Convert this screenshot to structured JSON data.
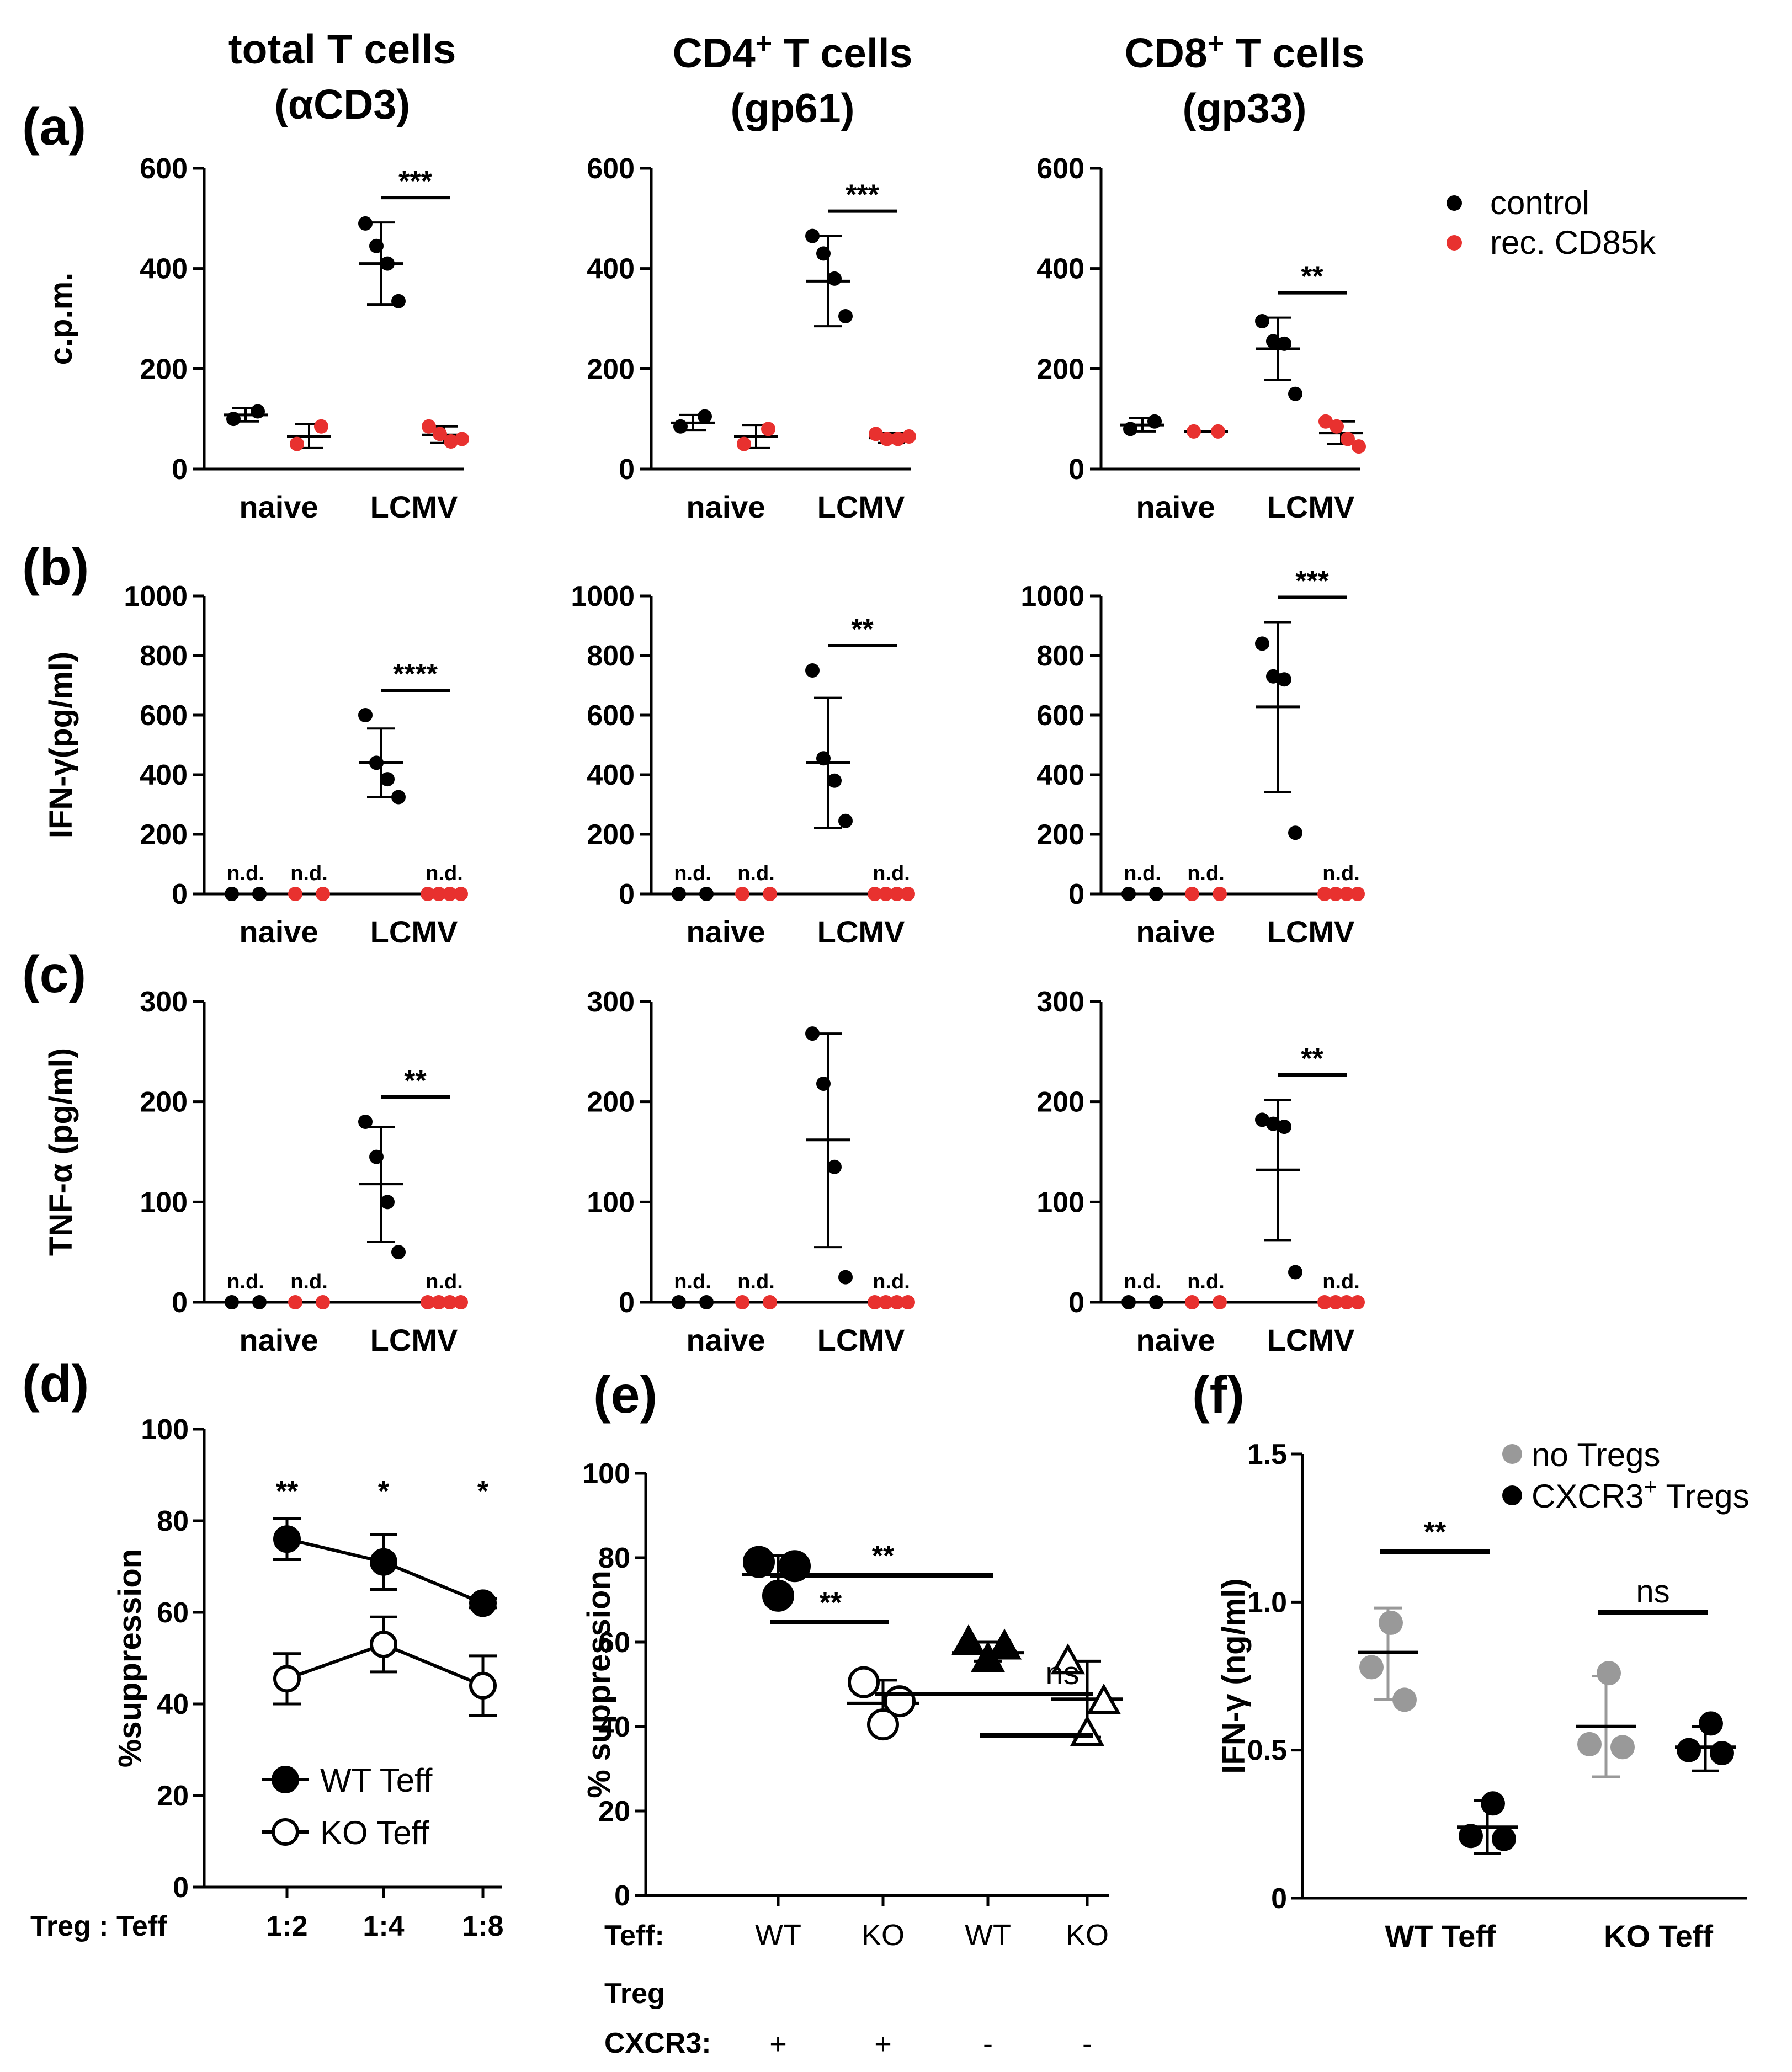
{
  "figure": {
    "colors": {
      "black": "#000000",
      "red": "#e8312f",
      "gray": "#999999"
    },
    "columns": [
      {
        "line1": "total T cells",
        "line2": "(αCD3)",
        "sup": ""
      },
      {
        "line1": "CD4",
        "sup": "+",
        "line1b": " T cells",
        "line2": "(gp61)"
      },
      {
        "line1": "CD8",
        "sup": "+",
        "line1b": " T cells",
        "line2": "(gp33)"
      }
    ],
    "row_labels": [
      "(a)",
      "(b)",
      "(c)"
    ],
    "legend_abc": [
      {
        "label": "control",
        "color": "#000000"
      },
      {
        "label": "rec. CD85k",
        "color": "#e8312f"
      }
    ]
  },
  "chart_data": [
    {
      "panel": "a",
      "col": 0,
      "type": "scatter",
      "ylabel": "c.p.m.",
      "ylim": [
        0,
        600
      ],
      "yticks": [
        0,
        200,
        400,
        600
      ],
      "categories": [
        "naive",
        "LCMV"
      ],
      "groups": [
        {
          "cat": 0,
          "side": "left",
          "color": "black",
          "points": [
            100,
            115
          ],
          "mean": 108,
          "err": [
            95,
            122
          ]
        },
        {
          "cat": 0,
          "side": "right",
          "color": "red",
          "points": [
            50,
            85
          ],
          "mean": 65,
          "err": [
            42,
            90
          ]
        },
        {
          "cat": 1,
          "side": "left",
          "color": "black",
          "points": [
            490,
            445,
            410,
            335
          ],
          "mean": 410,
          "err": [
            328,
            492
          ]
        },
        {
          "cat": 1,
          "side": "right",
          "color": "red",
          "points": [
            85,
            70,
            55,
            60
          ],
          "mean": 68,
          "err": [
            52,
            85
          ]
        }
      ],
      "nd": [],
      "sig": [
        {
          "cat": 1,
          "label": "***"
        }
      ]
    },
    {
      "panel": "a",
      "col": 1,
      "type": "scatter",
      "ylabel": "",
      "ylim": [
        0,
        600
      ],
      "yticks": [
        0,
        200,
        400,
        600
      ],
      "categories": [
        "naive",
        "LCMV"
      ],
      "groups": [
        {
          "cat": 0,
          "side": "left",
          "color": "black",
          "points": [
            85,
            105
          ],
          "mean": 92,
          "err": [
            78,
            108
          ]
        },
        {
          "cat": 0,
          "side": "right",
          "color": "red",
          "points": [
            50,
            80
          ],
          "mean": 65,
          "err": [
            42,
            88
          ]
        },
        {
          "cat": 1,
          "side": "left",
          "color": "black",
          "points": [
            465,
            430,
            380,
            305
          ],
          "mean": 375,
          "err": [
            285,
            465
          ]
        },
        {
          "cat": 1,
          "side": "right",
          "color": "red",
          "points": [
            70,
            60,
            60,
            65
          ],
          "mean": 62,
          "err": [
            52,
            72
          ]
        }
      ],
      "nd": [],
      "sig": [
        {
          "cat": 1,
          "label": "***"
        }
      ]
    },
    {
      "panel": "a",
      "col": 2,
      "type": "scatter",
      "ylabel": "",
      "ylim": [
        0,
        600
      ],
      "yticks": [
        0,
        200,
        400,
        600
      ],
      "categories": [
        "naive",
        "LCMV"
      ],
      "groups": [
        {
          "cat": 0,
          "side": "left",
          "color": "black",
          "points": [
            80,
            95
          ],
          "mean": 88,
          "err": [
            75,
            102
          ]
        },
        {
          "cat": 0,
          "side": "right",
          "color": "red",
          "points": [
            75,
            75
          ],
          "mean": 75,
          "err": [
            75,
            75
          ]
        },
        {
          "cat": 1,
          "side": "left",
          "color": "black",
          "points": [
            295,
            255,
            250,
            150
          ],
          "mean": 240,
          "err": [
            178,
            302
          ]
        },
        {
          "cat": 1,
          "side": "right",
          "color": "red",
          "points": [
            95,
            85,
            60,
            45
          ],
          "mean": 72,
          "err": [
            50,
            95
          ]
        }
      ],
      "nd": [],
      "sig": [
        {
          "cat": 1,
          "label": "**"
        }
      ]
    },
    {
      "panel": "b",
      "col": 0,
      "type": "scatter",
      "ylabel": "IFN-γ(pg/ml)",
      "ylim": [
        0,
        1000
      ],
      "yticks": [
        0,
        200,
        400,
        600,
        800,
        1000
      ],
      "categories": [
        "naive",
        "LCMV"
      ],
      "groups": [
        {
          "cat": 0,
          "side": "left",
          "color": "black",
          "points": [
            0,
            0
          ],
          "mean": null,
          "err": null
        },
        {
          "cat": 0,
          "side": "right",
          "color": "red",
          "points": [
            0,
            0
          ],
          "mean": null,
          "err": null
        },
        {
          "cat": 1,
          "side": "left",
          "color": "black",
          "points": [
            600,
            440,
            385,
            325
          ],
          "mean": 440,
          "err": [
            325,
            555
          ]
        },
        {
          "cat": 1,
          "side": "right",
          "color": "red",
          "points": [
            0,
            0,
            0,
            0
          ],
          "mean": null,
          "err": null
        }
      ],
      "nd": [
        {
          "cat": 0,
          "side": "left"
        },
        {
          "cat": 0,
          "side": "right"
        },
        {
          "cat": 1,
          "side": "right"
        }
      ],
      "nd_label": "n.d.",
      "sig": [
        {
          "cat": 1,
          "label": "****"
        }
      ]
    },
    {
      "panel": "b",
      "col": 1,
      "type": "scatter",
      "ylabel": "",
      "ylim": [
        0,
        1000
      ],
      "yticks": [
        0,
        200,
        400,
        600,
        800,
        1000
      ],
      "categories": [
        "naive",
        "LCMV"
      ],
      "groups": [
        {
          "cat": 0,
          "side": "left",
          "color": "black",
          "points": [
            0,
            0
          ],
          "mean": null,
          "err": null
        },
        {
          "cat": 0,
          "side": "right",
          "color": "red",
          "points": [
            0,
            0
          ],
          "mean": null,
          "err": null
        },
        {
          "cat": 1,
          "side": "left",
          "color": "black",
          "points": [
            750,
            455,
            380,
            245
          ],
          "mean": 440,
          "err": [
            222,
            658
          ]
        },
        {
          "cat": 1,
          "side": "right",
          "color": "red",
          "points": [
            0,
            0,
            0,
            0
          ],
          "mean": null,
          "err": null
        }
      ],
      "nd": [
        {
          "cat": 0,
          "side": "left"
        },
        {
          "cat": 0,
          "side": "right"
        },
        {
          "cat": 1,
          "side": "right"
        }
      ],
      "nd_label": "n.d.",
      "sig": [
        {
          "cat": 1,
          "label": "**"
        }
      ]
    },
    {
      "panel": "b",
      "col": 2,
      "type": "scatter",
      "ylabel": "",
      "ylim": [
        0,
        1000
      ],
      "yticks": [
        0,
        200,
        400,
        600,
        800,
        1000
      ],
      "categories": [
        "naive",
        "LCMV"
      ],
      "groups": [
        {
          "cat": 0,
          "side": "left",
          "color": "black",
          "points": [
            0,
            0
          ],
          "mean": null,
          "err": null
        },
        {
          "cat": 0,
          "side": "right",
          "color": "red",
          "points": [
            0,
            0
          ],
          "mean": null,
          "err": null
        },
        {
          "cat": 1,
          "side": "left",
          "color": "black",
          "points": [
            840,
            730,
            720,
            205
          ],
          "mean": 628,
          "err": [
            342,
            912
          ]
        },
        {
          "cat": 1,
          "side": "right",
          "color": "red",
          "points": [
            0,
            0,
            0,
            0
          ],
          "mean": null,
          "err": null
        }
      ],
      "nd": [
        {
          "cat": 0,
          "side": "left"
        },
        {
          "cat": 0,
          "side": "right"
        },
        {
          "cat": 1,
          "side": "right"
        }
      ],
      "nd_label": "n.d.",
      "sig": [
        {
          "cat": 1,
          "label": "***"
        }
      ]
    },
    {
      "panel": "c",
      "col": 0,
      "type": "scatter",
      "ylabel": "TNF-α (pg/ml)",
      "ylim": [
        0,
        300
      ],
      "yticks": [
        0,
        100,
        200,
        300
      ],
      "categories": [
        "naive",
        "LCMV"
      ],
      "groups": [
        {
          "cat": 0,
          "side": "left",
          "color": "black",
          "points": [
            0,
            0
          ],
          "mean": null,
          "err": null
        },
        {
          "cat": 0,
          "side": "right",
          "color": "red",
          "points": [
            0,
            0
          ],
          "mean": null,
          "err": null
        },
        {
          "cat": 1,
          "side": "left",
          "color": "black",
          "points": [
            180,
            145,
            100,
            50
          ],
          "mean": 118,
          "err": [
            60,
            175
          ]
        },
        {
          "cat": 1,
          "side": "right",
          "color": "red",
          "points": [
            0,
            0,
            0,
            0
          ],
          "mean": null,
          "err": null
        }
      ],
      "nd": [
        {
          "cat": 0,
          "side": "left"
        },
        {
          "cat": 0,
          "side": "right"
        },
        {
          "cat": 1,
          "side": "right"
        }
      ],
      "nd_label": "n.d.",
      "sig": [
        {
          "cat": 1,
          "label": "**"
        }
      ]
    },
    {
      "panel": "c",
      "col": 1,
      "type": "scatter",
      "ylabel": "",
      "ylim": [
        0,
        300
      ],
      "yticks": [
        0,
        100,
        200,
        300
      ],
      "categories": [
        "naive",
        "LCMV"
      ],
      "groups": [
        {
          "cat": 0,
          "side": "left",
          "color": "black",
          "points": [
            0,
            0
          ],
          "mean": null,
          "err": null
        },
        {
          "cat": 0,
          "side": "right",
          "color": "red",
          "points": [
            0,
            0
          ],
          "mean": null,
          "err": null
        },
        {
          "cat": 1,
          "side": "left",
          "color": "black",
          "points": [
            268,
            218,
            135,
            25
          ],
          "mean": 162,
          "err": [
            55,
            268
          ]
        },
        {
          "cat": 1,
          "side": "right",
          "color": "red",
          "points": [
            0,
            0,
            0,
            0
          ],
          "mean": null,
          "err": null
        }
      ],
      "nd": [
        {
          "cat": 0,
          "side": "left"
        },
        {
          "cat": 0,
          "side": "right"
        },
        {
          "cat": 1,
          "side": "right"
        }
      ],
      "nd_label": "n.d.",
      "sig": []
    },
    {
      "panel": "c",
      "col": 2,
      "type": "scatter",
      "ylabel": "",
      "ylim": [
        0,
        300
      ],
      "yticks": [
        0,
        100,
        200,
        300
      ],
      "categories": [
        "naive",
        "LCMV"
      ],
      "groups": [
        {
          "cat": 0,
          "side": "left",
          "color": "black",
          "points": [
            0,
            0
          ],
          "mean": null,
          "err": null
        },
        {
          "cat": 0,
          "side": "right",
          "color": "red",
          "points": [
            0,
            0
          ],
          "mean": null,
          "err": null
        },
        {
          "cat": 1,
          "side": "left",
          "color": "black",
          "points": [
            182,
            178,
            175,
            30
          ],
          "mean": 132,
          "err": [
            62,
            202
          ]
        },
        {
          "cat": 1,
          "side": "right",
          "color": "red",
          "points": [
            0,
            0,
            0,
            0
          ],
          "mean": null,
          "err": null
        }
      ],
      "nd": [
        {
          "cat": 0,
          "side": "left"
        },
        {
          "cat": 0,
          "side": "right"
        },
        {
          "cat": 1,
          "side": "right"
        }
      ],
      "nd_label": "n.d.",
      "sig": [
        {
          "cat": 1,
          "label": "**"
        }
      ]
    },
    {
      "panel": "d",
      "type": "line",
      "label": "(d)",
      "ylabel": "%suppression",
      "ylim": [
        0,
        100
      ],
      "yticks": [
        0,
        20,
        40,
        60,
        80,
        100
      ],
      "xlabel_prefix": "Treg : Teff",
      "categories": [
        "1:2",
        "1:4",
        "1:8"
      ],
      "series": [
        {
          "name": "WT Teff",
          "filled": true,
          "values": [
            76,
            71,
            62
          ],
          "err": [
            4.5,
            6,
            1
          ]
        },
        {
          "name": "KO Teff",
          "filled": false,
          "values": [
            45.5,
            53,
            44
          ],
          "err": [
            5.5,
            6,
            6.5
          ]
        }
      ],
      "sig": [
        "**",
        "*",
        "*"
      ]
    },
    {
      "panel": "e",
      "type": "scatter",
      "label": "(e)",
      "ylabel": "% suppression",
      "ylim": [
        0,
        100
      ],
      "yticks": [
        0,
        20,
        40,
        60,
        80,
        100
      ],
      "row1_label": "Teff:",
      "row1": [
        "WT",
        "KO",
        "WT",
        "KO"
      ],
      "row2_label_a": "Treg",
      "row2_label_b": "CXCR3:",
      "row2": [
        "+",
        "+",
        "-",
        "-"
      ],
      "groups": [
        {
          "marker": "circle",
          "filled": true,
          "points": [
            79,
            78,
            71
          ],
          "mean": 76,
          "err": [
            71,
            80.5
          ]
        },
        {
          "marker": "circle",
          "filled": false,
          "points": [
            50.5,
            46,
            40.5
          ],
          "mean": 45.5,
          "err": [
            40,
            51
          ]
        },
        {
          "marker": "triangle",
          "filled": true,
          "points": [
            60,
            59,
            56
          ],
          "mean": 57.5,
          "err": [
            55.5,
            60
          ]
        },
        {
          "marker": "triangle",
          "filled": false,
          "points": [
            55.5,
            46,
            38.5
          ],
          "mean": 46.5,
          "err": [
            37.5,
            55.5
          ]
        }
      ],
      "sig": [
        {
          "from": 0,
          "to": 2,
          "label": "**",
          "level": "high"
        },
        {
          "from": 0,
          "to": 1,
          "label": "**",
          "level": "mid"
        },
        {
          "from": 1,
          "to": 3,
          "label": "ns",
          "level": "low1"
        },
        {
          "from": 2,
          "to": 3,
          "label": "",
          "level": "low2"
        }
      ]
    },
    {
      "panel": "f",
      "type": "scatter",
      "label": "(f)",
      "ylabel": "IFN-γ (ng/ml)",
      "ylim": [
        0,
        1.5
      ],
      "yticks": [
        0,
        0.5,
        1.0,
        1.5
      ],
      "ytick_labels": [
        "0",
        "0.5",
        "1.0",
        "1.5"
      ],
      "categories": [
        "WT Teff",
        "KO Teff"
      ],
      "legend": [
        {
          "label": "no Tregs",
          "color": "#999999"
        },
        {
          "label": "CXCR3",
          "sup": "+",
          "label2": " Tregs",
          "color": "#000000"
        }
      ],
      "groups": [
        {
          "cat": 0,
          "side": "left",
          "color": "gray",
          "points": [
            0.93,
            0.78,
            0.67
          ],
          "mean": 0.83,
          "err": [
            0.67,
            0.98
          ]
        },
        {
          "cat": 0,
          "side": "right",
          "color": "black",
          "points": [
            0.32,
            0.21,
            0.2
          ],
          "mean": 0.24,
          "err": [
            0.15,
            0.33
          ]
        },
        {
          "cat": 1,
          "side": "left",
          "color": "gray",
          "points": [
            0.76,
            0.52,
            0.51
          ],
          "mean": 0.58,
          "err": [
            0.41,
            0.75
          ]
        },
        {
          "cat": 1,
          "side": "right",
          "color": "black",
          "points": [
            0.59,
            0.5,
            0.49
          ],
          "mean": 0.51,
          "err": [
            0.43,
            0.58
          ]
        }
      ],
      "sig": [
        {
          "cat": 0,
          "label": "**"
        },
        {
          "cat": 1,
          "label": "ns"
        }
      ]
    }
  ]
}
